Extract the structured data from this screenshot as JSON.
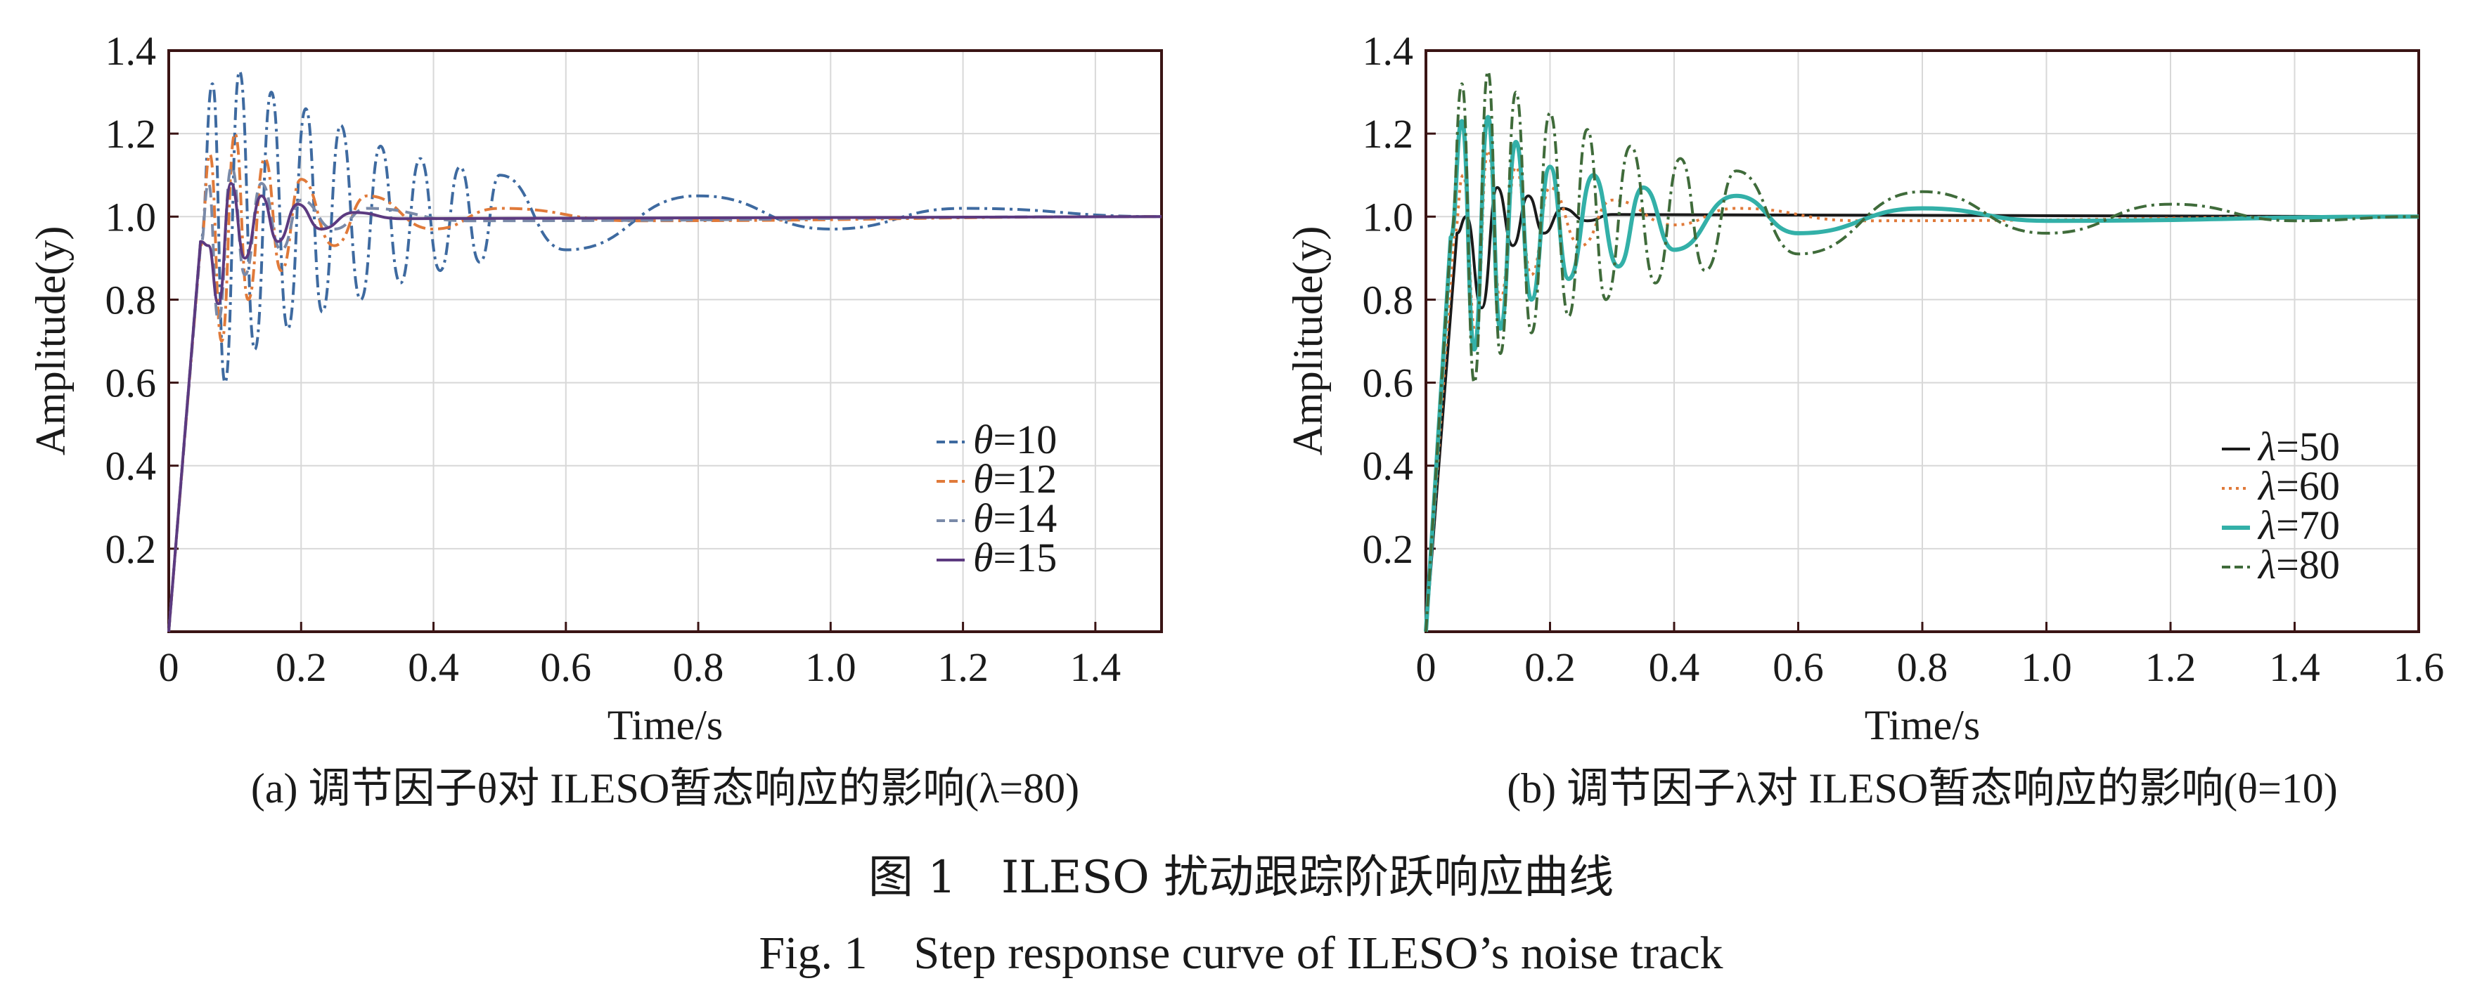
{
  "figure": {
    "caption_cn": "图 1　ILESO 扰动跟踪阶跃响应曲线",
    "caption_en": "Fig. 1　Step response curve of ILESO’s noise track"
  },
  "chart_data": [
    {
      "type": "line",
      "title": "(a) 调节因子θ对 ILESO暂态响应的影响(λ=80)",
      "xlabel": "Time/s",
      "ylabel": "Amplitude(y)",
      "xlim": [
        0,
        1.5
      ],
      "ylim": [
        0,
        1.4
      ],
      "xticks": [
        "0",
        "0.2",
        "0.4",
        "0.6",
        "0.8",
        "1.0",
        "1.2",
        "1.4"
      ],
      "yticks": [
        "0.2",
        "0.4",
        "0.6",
        "0.8",
        "1.0",
        "1.2",
        "1.4"
      ],
      "grid": true,
      "legend_position": "bottom-right",
      "series": [
        {
          "name": "θ=10",
          "symbol": "θ",
          "value": "=10",
          "color": "#3e6aa0",
          "dash": "dash-dot",
          "peaks": [
            [
              0.048,
              0.94
            ],
            [
              0.066,
              1.32
            ],
            [
              0.085,
              0.6
            ],
            [
              0.107,
              1.35
            ],
            [
              0.13,
              0.68
            ],
            [
              0.155,
              1.3
            ],
            [
              0.18,
              0.73
            ],
            [
              0.207,
              1.26
            ],
            [
              0.232,
              0.77
            ],
            [
              0.26,
              1.22
            ],
            [
              0.29,
              0.8
            ],
            [
              0.32,
              1.17
            ],
            [
              0.35,
              0.84
            ],
            [
              0.38,
              1.14
            ],
            [
              0.41,
              0.87
            ],
            [
              0.44,
              1.12
            ],
            [
              0.47,
              0.89
            ],
            [
              0.5,
              1.1
            ],
            [
              0.6,
              0.92
            ],
            [
              0.8,
              1.05
            ],
            [
              1.0,
              0.97
            ],
            [
              1.2,
              1.02
            ],
            [
              1.5,
              1.0
            ]
          ]
        },
        {
          "name": "θ=12",
          "symbol": "θ",
          "value": "=12",
          "color": "#e07a3a",
          "dash": "dash-dot",
          "peaks": [
            [
              0.048,
              0.93
            ],
            [
              0.062,
              1.15
            ],
            [
              0.08,
              0.7
            ],
            [
              0.1,
              1.2
            ],
            [
              0.12,
              0.8
            ],
            [
              0.145,
              1.14
            ],
            [
              0.17,
              0.87
            ],
            [
              0.2,
              1.09
            ],
            [
              0.25,
              0.93
            ],
            [
              0.3,
              1.05
            ],
            [
              0.4,
              0.97
            ],
            [
              0.5,
              1.02
            ],
            [
              0.7,
              0.99
            ],
            [
              1.5,
              1.0
            ]
          ]
        },
        {
          "name": "θ=14",
          "symbol": "θ",
          "value": "=14",
          "color": "#7a8aa8",
          "dash": "dash",
          "peaks": [
            [
              0.048,
              0.93
            ],
            [
              0.06,
              1.08
            ],
            [
              0.075,
              0.75
            ],
            [
              0.095,
              1.12
            ],
            [
              0.115,
              0.86
            ],
            [
              0.14,
              1.08
            ],
            [
              0.17,
              0.92
            ],
            [
              0.2,
              1.04
            ],
            [
              0.25,
              0.97
            ],
            [
              0.3,
              1.02
            ],
            [
              0.45,
              0.99
            ],
            [
              1.5,
              1.0
            ]
          ]
        },
        {
          "name": "θ=15",
          "symbol": "θ",
          "value": "=15",
          "color": "#5c3a80",
          "dash": "solid",
          "peaks": [
            [
              0.048,
              0.94
            ],
            [
              0.06,
              0.93
            ],
            [
              0.075,
              0.79
            ],
            [
              0.094,
              1.08
            ],
            [
              0.115,
              0.9
            ],
            [
              0.14,
              1.05
            ],
            [
              0.165,
              0.94
            ],
            [
              0.195,
              1.03
            ],
            [
              0.23,
              0.97
            ],
            [
              0.28,
              1.01
            ],
            [
              0.35,
              0.995
            ],
            [
              1.5,
              1.0
            ]
          ]
        }
      ]
    },
    {
      "type": "line",
      "title": "(b) 调节因子λ对 ILESO暂态响应的影响(θ=10)",
      "xlabel": "Time/s",
      "ylabel": "Amplitude(y)",
      "xlim": [
        0,
        1.6
      ],
      "ylim": [
        0,
        1.4
      ],
      "xticks": [
        "0",
        "0.2",
        "0.4",
        "0.6",
        "0.8",
        "1.0",
        "1.2",
        "1.4",
        "1.6"
      ],
      "yticks": [
        "0.2",
        "0.4",
        "0.6",
        "0.8",
        "1.0",
        "1.2",
        "1.4"
      ],
      "grid": true,
      "legend_position": "bottom-right",
      "series": [
        {
          "name": "λ=50",
          "symbol": "λ",
          "value": "=50",
          "color": "#1a1a1a",
          "dash": "solid",
          "peaks": [
            [
              0.05,
              0.96
            ],
            [
              0.065,
              1.0
            ],
            [
              0.09,
              0.78
            ],
            [
              0.115,
              1.07
            ],
            [
              0.14,
              0.93
            ],
            [
              0.165,
              1.05
            ],
            [
              0.19,
              0.96
            ],
            [
              0.22,
              1.02
            ],
            [
              0.26,
              0.99
            ],
            [
              0.3,
              1.005
            ],
            [
              1.6,
              1.0
            ]
          ]
        },
        {
          "name": "λ=60",
          "symbol": "λ",
          "value": "=60",
          "color": "#e07a3a",
          "dash": "dot",
          "peaks": [
            [
              0.045,
              0.95
            ],
            [
              0.06,
              1.1
            ],
            [
              0.08,
              0.72
            ],
            [
              0.1,
              1.16
            ],
            [
              0.12,
              0.8
            ],
            [
              0.145,
              1.12
            ],
            [
              0.17,
              0.86
            ],
            [
              0.2,
              1.07
            ],
            [
              0.25,
              0.93
            ],
            [
              0.3,
              1.04
            ],
            [
              0.4,
              0.98
            ],
            [
              0.5,
              1.02
            ],
            [
              0.7,
              0.99
            ],
            [
              1.6,
              1.0
            ]
          ]
        },
        {
          "name": "λ=70",
          "symbol": "λ",
          "value": "=70",
          "color": "#33b0a8",
          "dash": "solid-thick",
          "peaks": [
            [
              0.04,
              0.95
            ],
            [
              0.058,
              1.23
            ],
            [
              0.078,
              0.68
            ],
            [
              0.1,
              1.24
            ],
            [
              0.12,
              0.73
            ],
            [
              0.145,
              1.18
            ],
            [
              0.17,
              0.8
            ],
            [
              0.2,
              1.12
            ],
            [
              0.23,
              0.85
            ],
            [
              0.27,
              1.1
            ],
            [
              0.31,
              0.88
            ],
            [
              0.35,
              1.07
            ],
            [
              0.4,
              0.92
            ],
            [
              0.5,
              1.05
            ],
            [
              0.6,
              0.96
            ],
            [
              0.8,
              1.02
            ],
            [
              1.0,
              0.99
            ],
            [
              1.6,
              1.0
            ]
          ]
        },
        {
          "name": "λ=80",
          "symbol": "λ",
          "value": "=80",
          "color": "#3f6b3a",
          "dash": "dash-dot",
          "peaks": [
            [
              0.04,
              0.95
            ],
            [
              0.058,
              1.32
            ],
            [
              0.078,
              0.6
            ],
            [
              0.1,
              1.35
            ],
            [
              0.12,
              0.67
            ],
            [
              0.145,
              1.3
            ],
            [
              0.17,
              0.72
            ],
            [
              0.2,
              1.25
            ],
            [
              0.23,
              0.76
            ],
            [
              0.26,
              1.21
            ],
            [
              0.29,
              0.8
            ],
            [
              0.33,
              1.17
            ],
            [
              0.37,
              0.84
            ],
            [
              0.41,
              1.14
            ],
            [
              0.45,
              0.87
            ],
            [
              0.5,
              1.11
            ],
            [
              0.6,
              0.91
            ],
            [
              0.8,
              1.06
            ],
            [
              1.0,
              0.96
            ],
            [
              1.2,
              1.03
            ],
            [
              1.4,
              0.99
            ],
            [
              1.6,
              1.0
            ]
          ]
        }
      ]
    }
  ]
}
